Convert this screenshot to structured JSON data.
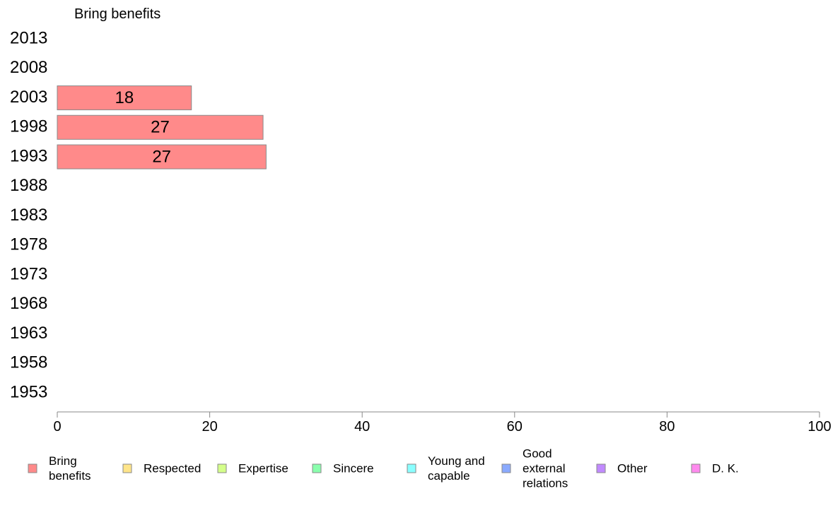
{
  "chart_data": {
    "type": "bar",
    "orientation": "horizontal",
    "title": "Bring benefits",
    "categories": [
      "2013",
      "2008",
      "2003",
      "1998",
      "1993",
      "1988",
      "1983",
      "1978",
      "1973",
      "1968",
      "1963",
      "1958",
      "1953"
    ],
    "series": [
      {
        "name": "Bring benefits",
        "color": "#ff8a8a",
        "values": [
          null,
          null,
          17.6,
          27.0,
          27.4,
          null,
          null,
          null,
          null,
          null,
          null,
          null,
          null
        ],
        "labels": [
          "",
          "",
          "18",
          "27",
          "27",
          "",
          "",
          "",
          "",
          "",
          "",
          "",
          ""
        ]
      }
    ],
    "xlim": [
      0,
      100
    ],
    "xticks": [
      "0",
      "20",
      "40",
      "60",
      "80",
      "100"
    ],
    "grid": false,
    "legend_position": "bottom",
    "legend": [
      {
        "lines": [
          "Bring",
          "benefits"
        ],
        "color": "#ff8a8a"
      },
      {
        "lines": [
          "Respected"
        ],
        "color": "#ffe58a"
      },
      {
        "lines": [
          "Expertise"
        ],
        "color": "#d4ff8a"
      },
      {
        "lines": [
          "Sincere"
        ],
        "color": "#8affad"
      },
      {
        "lines": [
          "Young and",
          "capable"
        ],
        "color": "#8affff"
      },
      {
        "lines": [
          "Good",
          "external",
          "relations"
        ],
        "color": "#8aaaff"
      },
      {
        "lines": [
          "Other"
        ],
        "color": "#c18aff"
      },
      {
        "lines": [
          "D. K."
        ],
        "color": "#ff8aee"
      }
    ]
  }
}
